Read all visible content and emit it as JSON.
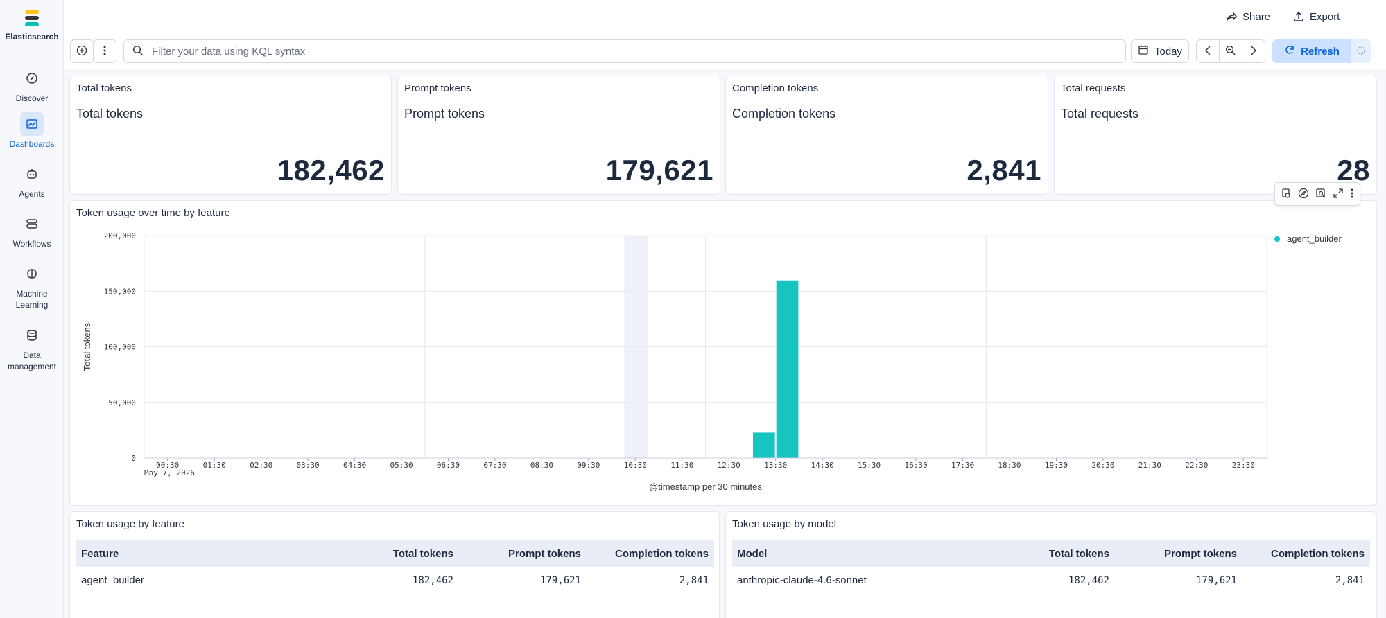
{
  "app": {
    "name": "Elasticsearch"
  },
  "nav": {
    "items": [
      {
        "label": "Discover",
        "icon": "compass-icon",
        "active": false
      },
      {
        "label": "Dashboards",
        "icon": "dashboard-icon",
        "active": true
      },
      {
        "label": "Agents",
        "icon": "robot-icon",
        "active": false
      },
      {
        "label": "Workflows",
        "icon": "workflow-icon",
        "active": false
      },
      {
        "label": "Machine\nLearning",
        "icon": "brain-icon",
        "active": false
      },
      {
        "label": "Data\nmanagement",
        "icon": "database-icon",
        "active": false
      }
    ]
  },
  "header": {
    "share_label": "Share",
    "export_label": "Export"
  },
  "query": {
    "placeholder": "Filter your data using KQL syntax",
    "date_label": "Today",
    "refresh_label": "Refresh"
  },
  "metrics": [
    {
      "title": "Total tokens",
      "label": "Total tokens",
      "value": "182,462"
    },
    {
      "title": "Prompt tokens",
      "label": "Prompt tokens",
      "value": "179,621"
    },
    {
      "title": "Completion tokens",
      "label": "Completion tokens",
      "value": "2,841"
    },
    {
      "title": "Total requests",
      "label": "Total requests",
      "value": "28"
    }
  ],
  "chart_panel": {
    "title": "Token usage over time by feature"
  },
  "chart_data": {
    "type": "bar",
    "title": "Token usage over time by feature",
    "xlabel": "@timestamp per 30 minutes",
    "ylabel": "Total tokens",
    "date_label": "May 7, 2026",
    "ylim": [
      0,
      200000
    ],
    "yticks": [
      "200,000",
      "150,000",
      "100,000",
      "50,000",
      "0"
    ],
    "ytick_values": [
      200000,
      150000,
      100000,
      50000,
      0
    ],
    "xticks": [
      "00:30",
      "01:30",
      "02:30",
      "03:30",
      "04:30",
      "05:30",
      "06:30",
      "07:30",
      "08:30",
      "09:30",
      "10:30",
      "11:30",
      "12:30",
      "13:30",
      "14:30",
      "15:30",
      "16:30",
      "17:30",
      "18:30",
      "19:30",
      "20:30",
      "21:30",
      "22:30",
      "23:30"
    ],
    "x_range_hours": [
      0,
      24
    ],
    "highlight_time": "10:30",
    "grid": true,
    "legend_position": "top-right",
    "series": [
      {
        "name": "agent_builder",
        "color": "#16c5c0",
        "points": [
          {
            "time": "13:00",
            "value": 22800
          },
          {
            "time": "13:30",
            "value": 159662
          }
        ]
      }
    ]
  },
  "tables": [
    {
      "title": "Token usage by feature",
      "columns": [
        "Feature",
        "Total tokens",
        "Prompt tokens",
        "Completion tokens"
      ],
      "rows": [
        [
          "agent_builder",
          "182,462",
          "179,621",
          "2,841"
        ]
      ]
    },
    {
      "title": "Token usage by model",
      "columns": [
        "Model",
        "Total tokens",
        "Prompt tokens",
        "Completion tokens"
      ],
      "rows": [
        [
          "anthropic-claude-4.6-sonnet",
          "182,462",
          "179,621",
          "2,841"
        ]
      ]
    }
  ],
  "colors": {
    "accent": "#0b64dd",
    "series": "#16c5c0",
    "text": "#1d2a3e"
  }
}
